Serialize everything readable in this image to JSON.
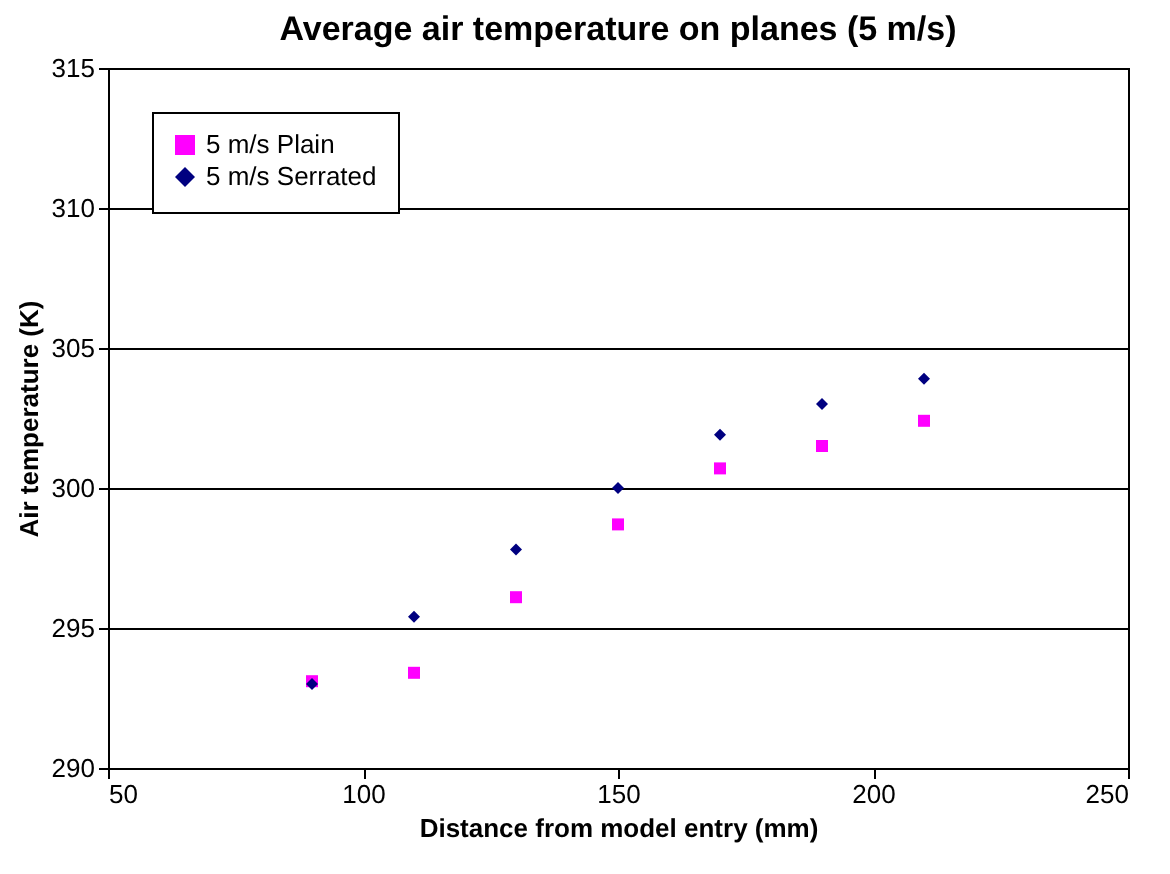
{
  "chart_data": {
    "type": "scatter",
    "title": "Average air temperature on planes (5 m/s)",
    "xlabel": "Distance from model entry (mm)",
    "ylabel": "Air temperature (K)",
    "x": [
      90,
      110,
      130,
      150,
      170,
      190,
      210
    ],
    "series": [
      {
        "name": "5 m/s Plain",
        "color": "#ff00ff",
        "marker": "square",
        "values": [
          293.1,
          293.4,
          296.1,
          298.7,
          300.7,
          301.5,
          302.4
        ]
      },
      {
        "name": "5 m/s Serrated",
        "color": "#000080",
        "marker": "diamond",
        "values": [
          293.0,
          295.4,
          297.8,
          300.0,
          301.9,
          303.0,
          303.9
        ]
      }
    ],
    "xlim": [
      50,
      250
    ],
    "xticks": [
      50,
      100,
      150,
      200,
      250
    ],
    "ylim": [
      290,
      315
    ],
    "yticks": [
      290,
      295,
      300,
      305,
      310,
      315
    ],
    "grid": "y",
    "legend": "top left"
  }
}
